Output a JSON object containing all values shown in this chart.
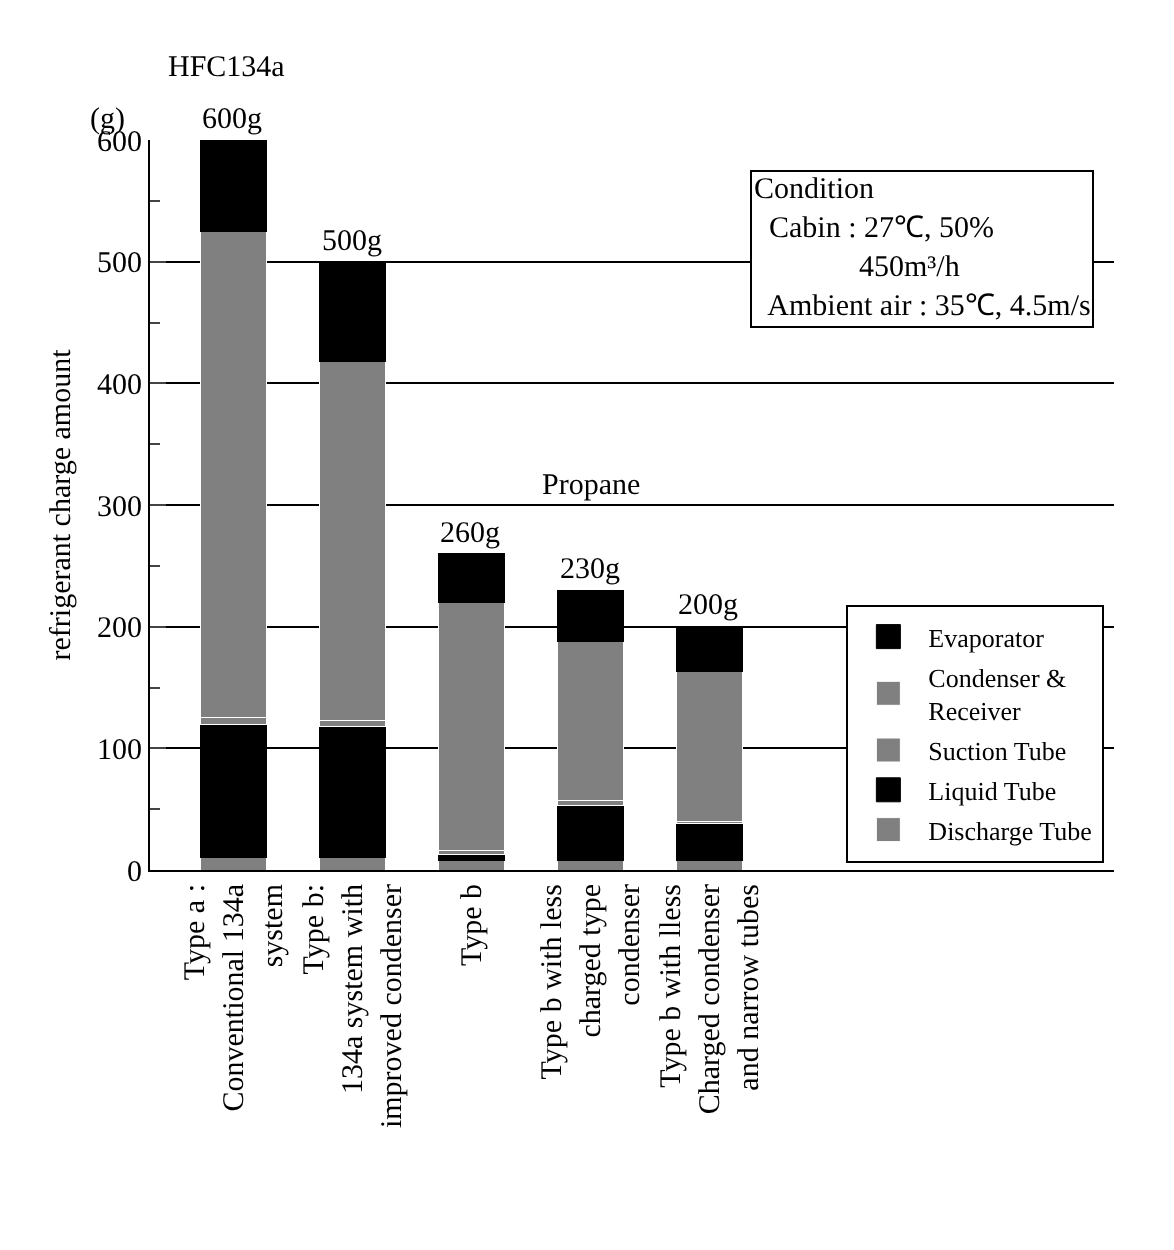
{
  "chart_data": {
    "type": "bar",
    "stacked": true,
    "ylabel": "refrigerant charge amount",
    "categories": [
      "Type a :\nConventional 134a\nsystem",
      "Type b:\n134a system with\nimproved condenser",
      "Type b",
      "Type b with less\ncharged type\ncondenser",
      "Type b with lless\nCharged condenser\nand narrow tubes"
    ],
    "series": [
      {
        "name": "Discharge Tube",
        "color": "#808080",
        "values": [
          10,
          10,
          8,
          8,
          8
        ]
      },
      {
        "name": "Liquid Tube",
        "color": "#000000",
        "values": [
          110,
          108,
          5,
          45,
          30
        ]
      },
      {
        "name": "Suction Tube",
        "color": "#808080",
        "values": [
          5,
          5,
          3,
          4,
          2
        ]
      },
      {
        "name": "Condenser &\nReceiver",
        "color": "#808080",
        "values": [
          400,
          295,
          204,
          131,
          123
        ]
      },
      {
        "name": "Evaporator",
        "color": "#000000",
        "values": [
          75,
          82,
          40,
          42,
          37
        ]
      }
    ],
    "totals": [
      "600g",
      "500g",
      "260g",
      "230g",
      "200g"
    ],
    "ylim": [
      0,
      600
    ],
    "yticks": [
      0,
      100,
      200,
      300,
      400,
      500,
      600
    ],
    "grid": "y",
    "legend": "bottom right",
    "annotations": [
      "(g)",
      "HFC134a",
      "Propane",
      "Condition\n  Cabin : 27℃, 50%\n              450m³/h\n  Ambient air : 35℃, 4.5m/s"
    ]
  }
}
